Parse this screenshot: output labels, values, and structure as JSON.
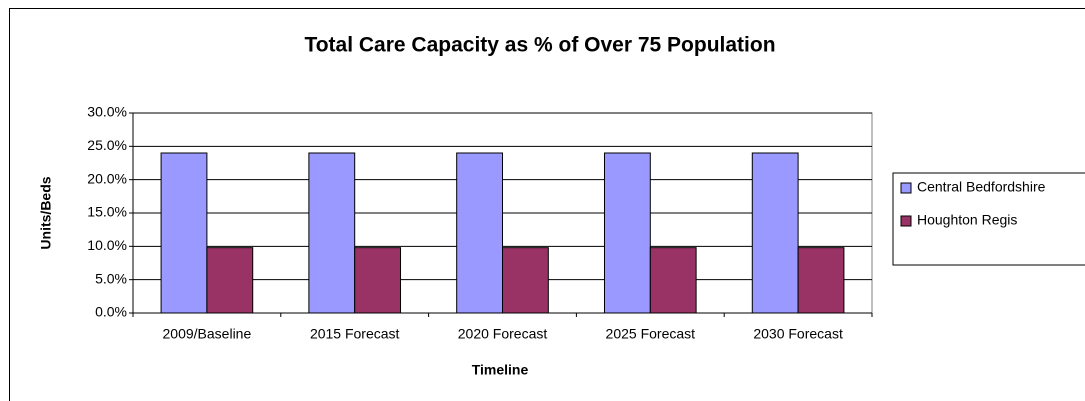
{
  "chart_data": {
    "type": "bar",
    "title": "Total Care Capacity as % of Over 75 Population",
    "x_label": "Timeline",
    "y_label": "Units/Beds",
    "categories": [
      "2009/Baseline",
      "2015 Forecast",
      "2020 Forecast",
      "2025 Forecast",
      "2030 Forecast"
    ],
    "series": [
      {
        "name": "Central Bedfordshire",
        "color": "#9999ff",
        "values": [
          24.0,
          24.0,
          24.0,
          24.0,
          24.0
        ]
      },
      {
        "name": "Houghton Regis",
        "color": "#993366",
        "values": [
          9.8,
          9.8,
          9.8,
          9.8,
          9.8
        ]
      }
    ],
    "ylim": [
      0,
      30
    ],
    "yticks": [
      {
        "value": 0,
        "label": "0.0%"
      },
      {
        "value": 5,
        "label": "5.0%"
      },
      {
        "value": 10,
        "label": "10.0%"
      },
      {
        "value": 15,
        "label": "15.0%"
      },
      {
        "value": 20,
        "label": "20.0%"
      },
      {
        "value": 25,
        "label": "25.0%"
      },
      {
        "value": 30,
        "label": "30.0%"
      }
    ],
    "grid": true,
    "legend": "right"
  }
}
